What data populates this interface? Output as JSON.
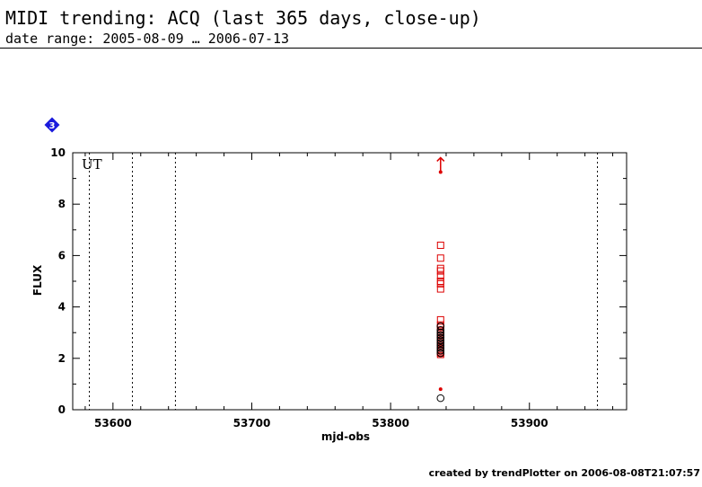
{
  "header": {
    "title": "MIDI trending: ACQ (last 365 days, close-up)",
    "subtitle": "date range: 2005-08-09 … 2006-07-13"
  },
  "footer": {
    "text": "created by trendPlotter on 2006-08-08T21:07:57"
  },
  "badge": {
    "label": "3",
    "color": "#1a1adc"
  },
  "colors": {
    "red": "#dd0000",
    "black": "#000000"
  },
  "chart_data": {
    "type": "scatter",
    "xlabel": "mjd-obs",
    "ylabel": "FLUX",
    "xlim": [
      53571,
      53970
    ],
    "ylim": [
      0,
      10
    ],
    "xticks": [
      53600,
      53700,
      53800,
      53900
    ],
    "yticks": [
      0,
      2,
      4,
      6,
      8,
      10
    ],
    "grid": false,
    "annotation": "UT",
    "vlines": [
      53583,
      53614,
      53645,
      53949
    ],
    "series": [
      {
        "marker": "open-square",
        "color": "#dd0000",
        "x": [
          53836,
          53836,
          53836,
          53836,
          53836,
          53836,
          53836,
          53836,
          53836,
          53836,
          53836,
          53836,
          53836,
          53836,
          53836,
          53836,
          53836,
          53836,
          53836,
          53836,
          53836,
          53836,
          53836,
          53836,
          53836,
          53836,
          53836,
          53836,
          53836
        ],
        "y": [
          6.4,
          5.9,
          5.5,
          5.4,
          5.2,
          5.0,
          4.9,
          4.7,
          3.5,
          3.3,
          3.2,
          3.1,
          3.0,
          2.9,
          2.85,
          2.8,
          2.75,
          2.7,
          2.65,
          2.6,
          2.55,
          2.5,
          2.45,
          2.4,
          2.35,
          2.3,
          2.25,
          2.2,
          2.15
        ]
      },
      {
        "marker": "open-circle",
        "color": "#000000",
        "x": [
          53836,
          53836,
          53836,
          53836,
          53836,
          53836,
          53836,
          53836,
          53836,
          53836,
          53836,
          53836
        ],
        "y": [
          3.25,
          3.1,
          3.0,
          2.9,
          2.8,
          2.7,
          2.6,
          2.5,
          2.4,
          2.3,
          2.2,
          0.45
        ]
      },
      {
        "marker": "filled-dot",
        "color": "#dd0000",
        "x": [
          53836,
          53836
        ],
        "y": [
          9.25,
          0.8
        ]
      },
      {
        "marker": "up-arrow",
        "color": "#dd0000",
        "x": [
          53836
        ],
        "y": [
          9.6
        ]
      }
    ]
  }
}
